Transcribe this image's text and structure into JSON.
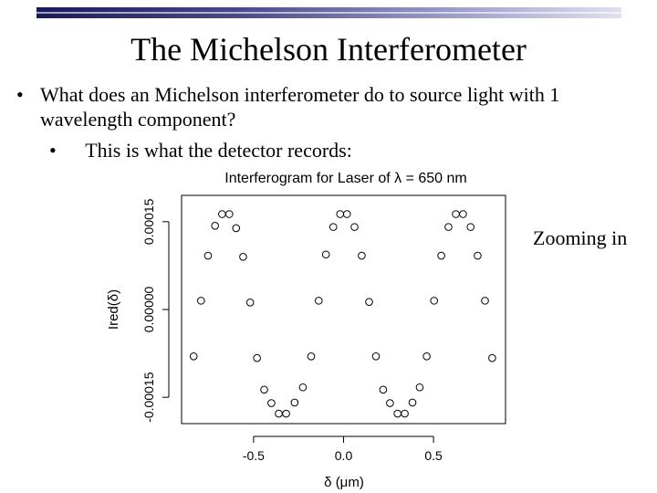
{
  "slide": {
    "title": "The Michelson Interferometer",
    "bullet_mark": "•",
    "bullet1": "What does an Michelson interferometer do to source light with 1 wavelength component?",
    "bullet2": "This is what the detector records:",
    "note": "Zooming in"
  },
  "colors": {
    "header_bar_dark": "#1a1a5a",
    "header_bar_light": "#e0e0f0",
    "points": "#000000"
  },
  "chart_data": {
    "type": "scatter",
    "title": "Interferogram for Laser of λ = 650 nm",
    "xlabel": "δ (μm)",
    "ylabel": "Ired(δ)",
    "xlim": [
      -0.9,
      0.9
    ],
    "ylim": [
      -0.000195,
      0.000195
    ],
    "xticks": [
      -0.5,
      0.0,
      0.5
    ],
    "xtick_labels": [
      "-0.5",
      "0.0",
      "0.5"
    ],
    "yticks": [
      -0.00015,
      0.0,
      0.00015
    ],
    "ytick_labels": [
      "-0.00015",
      "0.00000",
      "0.00015"
    ],
    "grid": false,
    "marker": "open-circle",
    "points": [
      {
        "x": -0.833,
        "y": -8e-05
      },
      {
        "x": -0.792,
        "y": 1.5e-05
      },
      {
        "x": -0.753,
        "y": 9.2e-05
      },
      {
        "x": -0.714,
        "y": 0.000143
      },
      {
        "x": -0.675,
        "y": 0.000163
      },
      {
        "x": -0.635,
        "y": 0.000163
      },
      {
        "x": -0.597,
        "y": 0.000139
      },
      {
        "x": -0.558,
        "y": 9e-05
      },
      {
        "x": -0.519,
        "y": 1.2e-05
      },
      {
        "x": -0.481,
        "y": -8.3e-05
      },
      {
        "x": -0.441,
        "y": -0.000137
      },
      {
        "x": -0.401,
        "y": -0.00016
      },
      {
        "x": -0.36,
        "y": -0.000178
      },
      {
        "x": -0.319,
        "y": -0.000178
      },
      {
        "x": -0.272,
        "y": -0.000159
      },
      {
        "x": -0.226,
        "y": -0.000133
      },
      {
        "x": -0.18,
        "y": -8e-05
      },
      {
        "x": -0.138,
        "y": 1.5e-05
      },
      {
        "x": -0.098,
        "y": 9.4e-05
      },
      {
        "x": -0.057,
        "y": 0.000141
      },
      {
        "x": -0.019,
        "y": 0.000163
      },
      {
        "x": 0.019,
        "y": 0.000163
      },
      {
        "x": 0.061,
        "y": 0.000141
      },
      {
        "x": 0.101,
        "y": 9.2e-05
      },
      {
        "x": 0.142,
        "y": 1.3e-05
      },
      {
        "x": 0.18,
        "y": -8e-05
      },
      {
        "x": 0.22,
        "y": -0.000137
      },
      {
        "x": 0.258,
        "y": -0.00016
      },
      {
        "x": 0.3,
        "y": -0.000178
      },
      {
        "x": 0.34,
        "y": -0.000178
      },
      {
        "x": 0.383,
        "y": -0.000159
      },
      {
        "x": 0.423,
        "y": -0.000133
      },
      {
        "x": 0.462,
        "y": -8e-05
      },
      {
        "x": 0.503,
        "y": 1.5e-05
      },
      {
        "x": 0.543,
        "y": 9.2e-05
      },
      {
        "x": 0.583,
        "y": 0.000141
      },
      {
        "x": 0.624,
        "y": 0.000163
      },
      {
        "x": 0.664,
        "y": 0.000163
      },
      {
        "x": 0.706,
        "y": 0.000141
      },
      {
        "x": 0.745,
        "y": 9.2e-05
      },
      {
        "x": 0.786,
        "y": 1.5e-05
      },
      {
        "x": 0.826,
        "y": -8.3e-05
      }
    ]
  }
}
